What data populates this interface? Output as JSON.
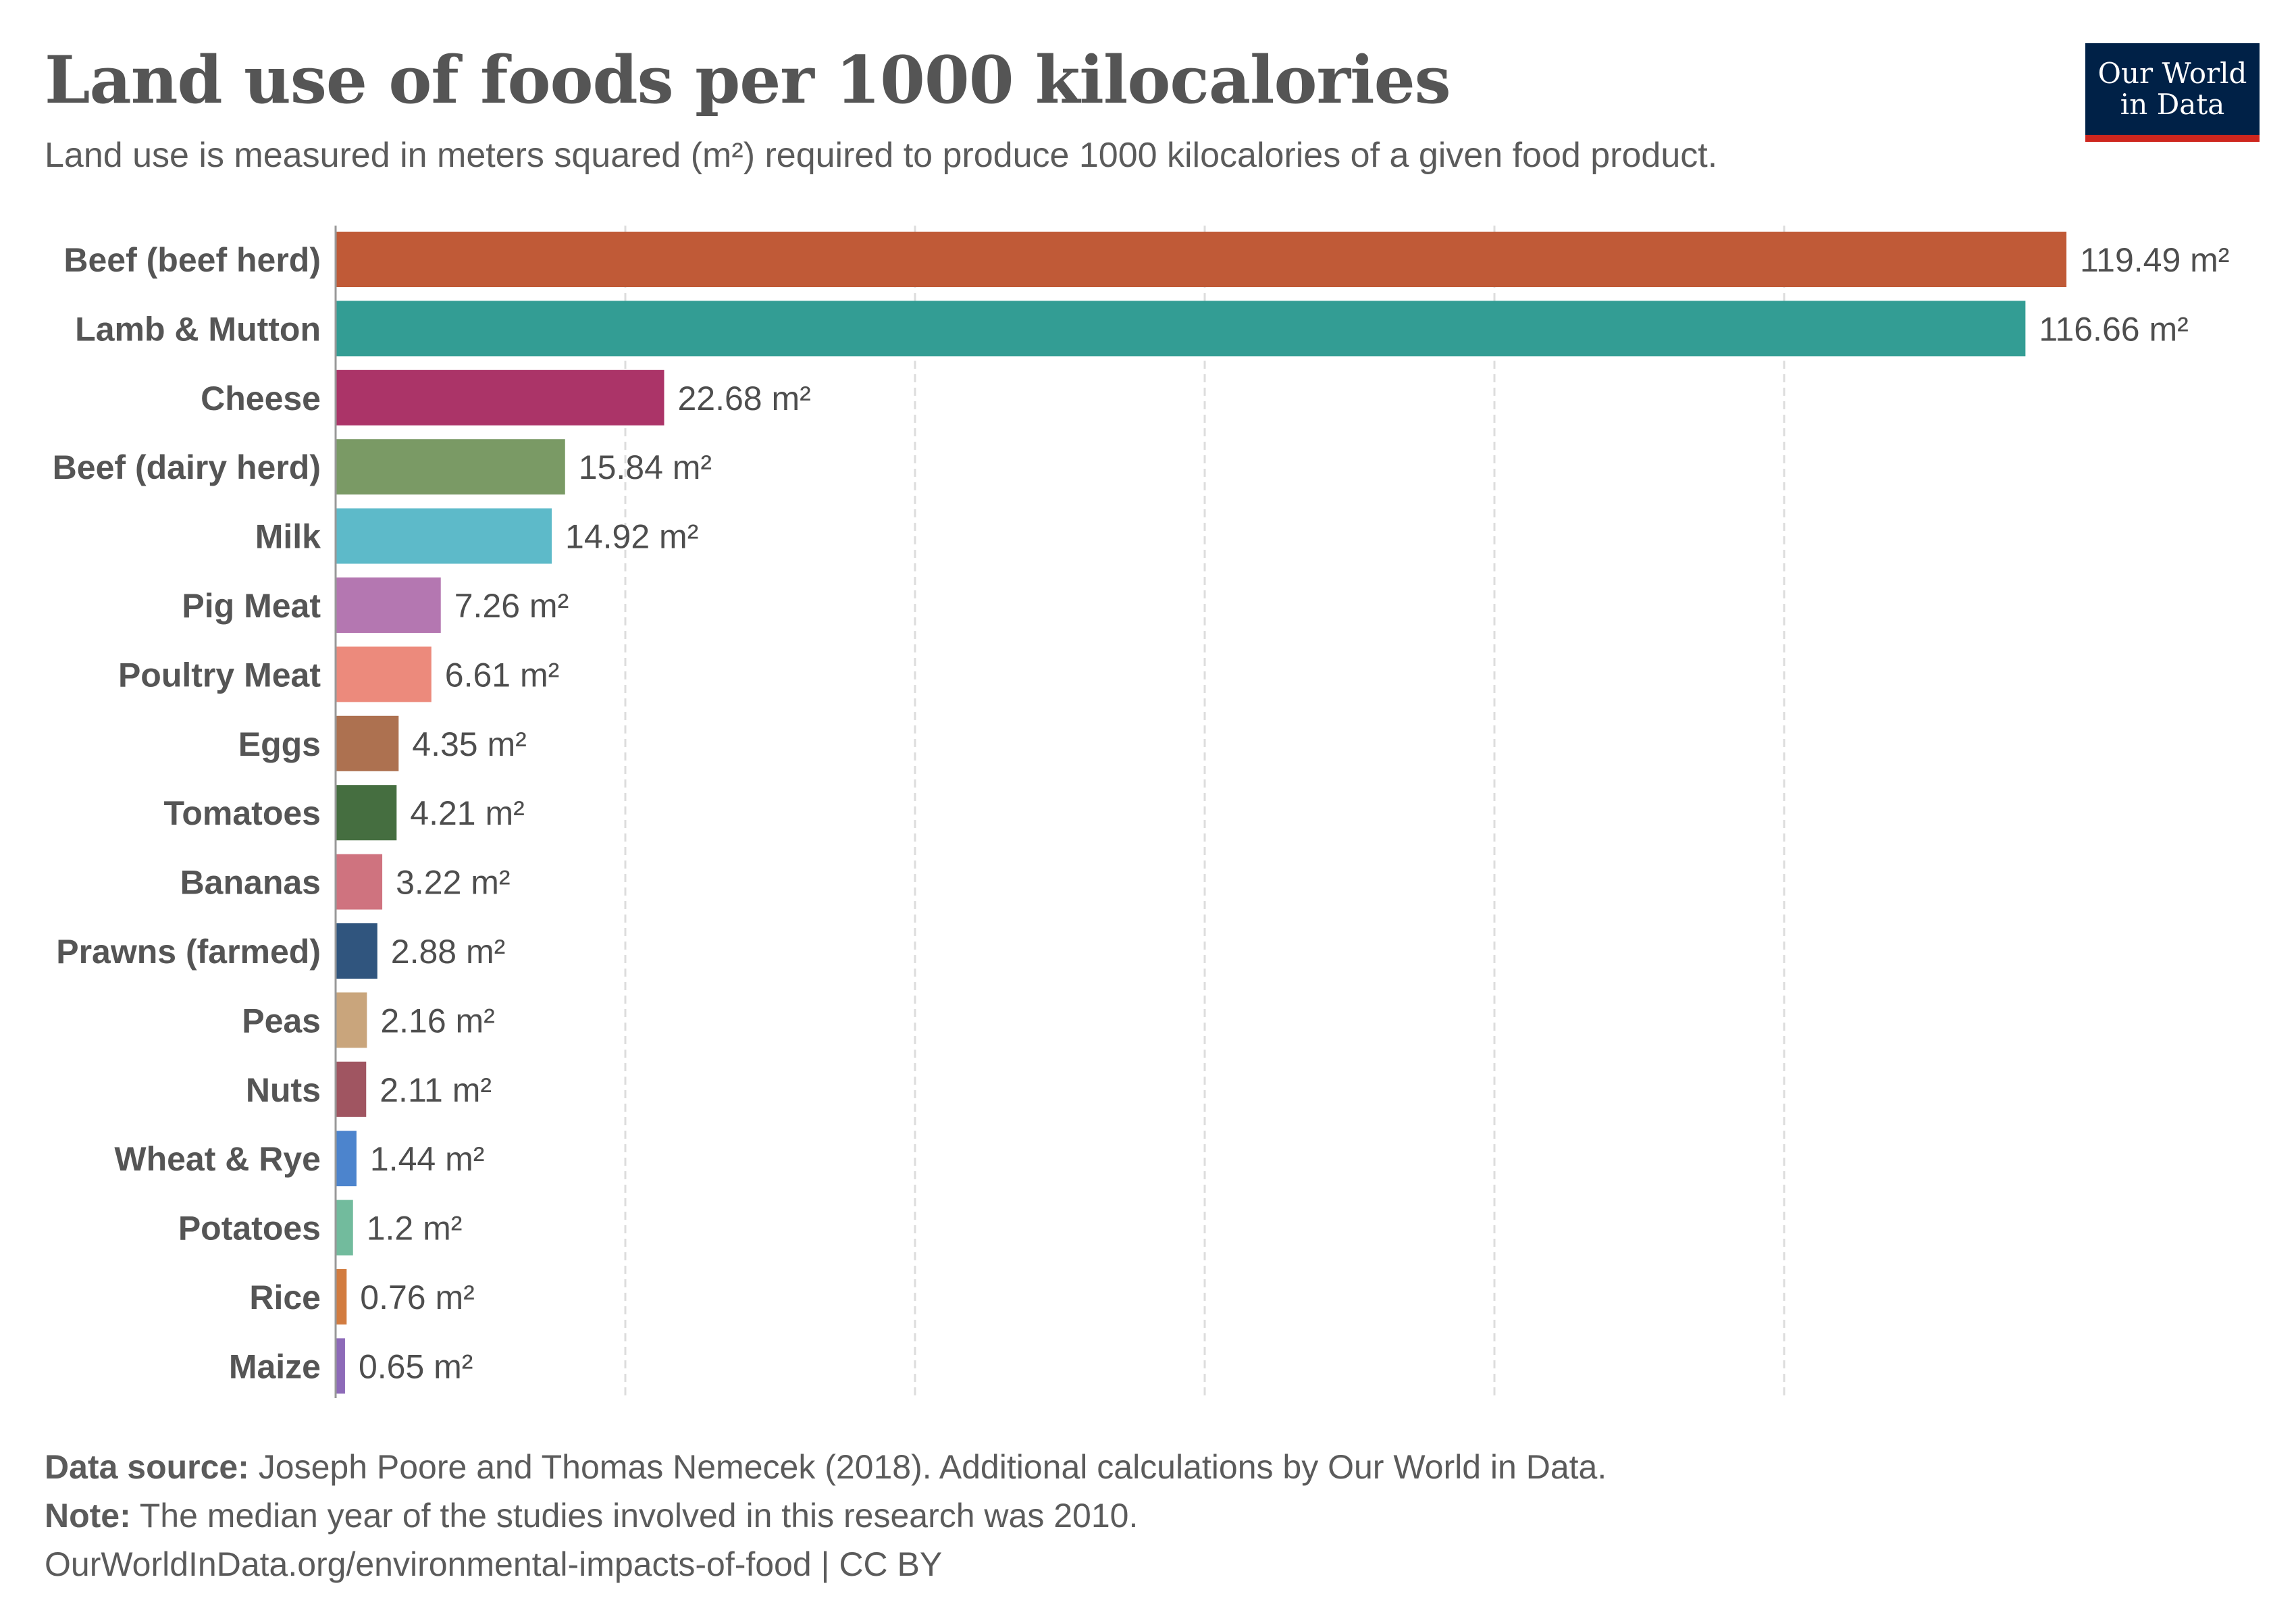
{
  "title": "Land use of foods per 1000 kilocalories",
  "subtitle": "Land use is measured in meters squared (m²) required to produce 1000 kilocalories of a given food product.",
  "logo": {
    "line1": "Our World",
    "line2": "in Data"
  },
  "chart_data": {
    "type": "bar",
    "orientation": "horizontal",
    "unit": "m²",
    "categories": [
      "Beef (beef herd)",
      "Lamb & Mutton",
      "Cheese",
      "Beef (dairy herd)",
      "Milk",
      "Pig Meat",
      "Poultry Meat",
      "Eggs",
      "Tomatoes",
      "Bananas",
      "Prawns (farmed)",
      "Peas",
      "Nuts",
      "Wheat & Rye",
      "Potatoes",
      "Rice",
      "Maize"
    ],
    "values": [
      119.49,
      116.66,
      22.68,
      15.84,
      14.92,
      7.26,
      6.61,
      4.35,
      4.21,
      3.22,
      2.88,
      2.16,
      2.11,
      1.44,
      1.2,
      0.76,
      0.65
    ],
    "value_labels": [
      "119.49 m²",
      "116.66 m²",
      "22.68 m²",
      "15.84 m²",
      "14.92 m²",
      "7.26 m²",
      "6.61 m²",
      "4.35 m²",
      "4.21 m²",
      "3.22 m²",
      "2.88 m²",
      "2.16 m²",
      "2.11 m²",
      "1.44 m²",
      "1.2 m²",
      "0.76 m²",
      "0.65 m²"
    ],
    "colors": [
      "#c05a37",
      "#339d94",
      "#ab3468",
      "#7a9a65",
      "#5dbac9",
      "#b477b1",
      "#ec8a7c",
      "#ad7150",
      "#456e40",
      "#cf737f",
      "#30557e",
      "#c9a57c",
      "#a05561",
      "#4c84cd",
      "#72bb9d",
      "#d27c40",
      "#8d6ab8"
    ],
    "xlim": [
      0,
      120
    ],
    "gridlines": [
      0,
      20,
      40,
      60,
      80,
      100
    ],
    "grid": true
  },
  "footer": {
    "source_label": "Data source:",
    "source_text": " Joseph Poore and Thomas Nemecek (2018). Additional calculations by Our World in Data.",
    "note_label": "Note:",
    "note_text": " The median year of the studies involved in this research was 2010.",
    "url_line": "OurWorldInData.org/environmental-impacts-of-food | CC BY"
  }
}
